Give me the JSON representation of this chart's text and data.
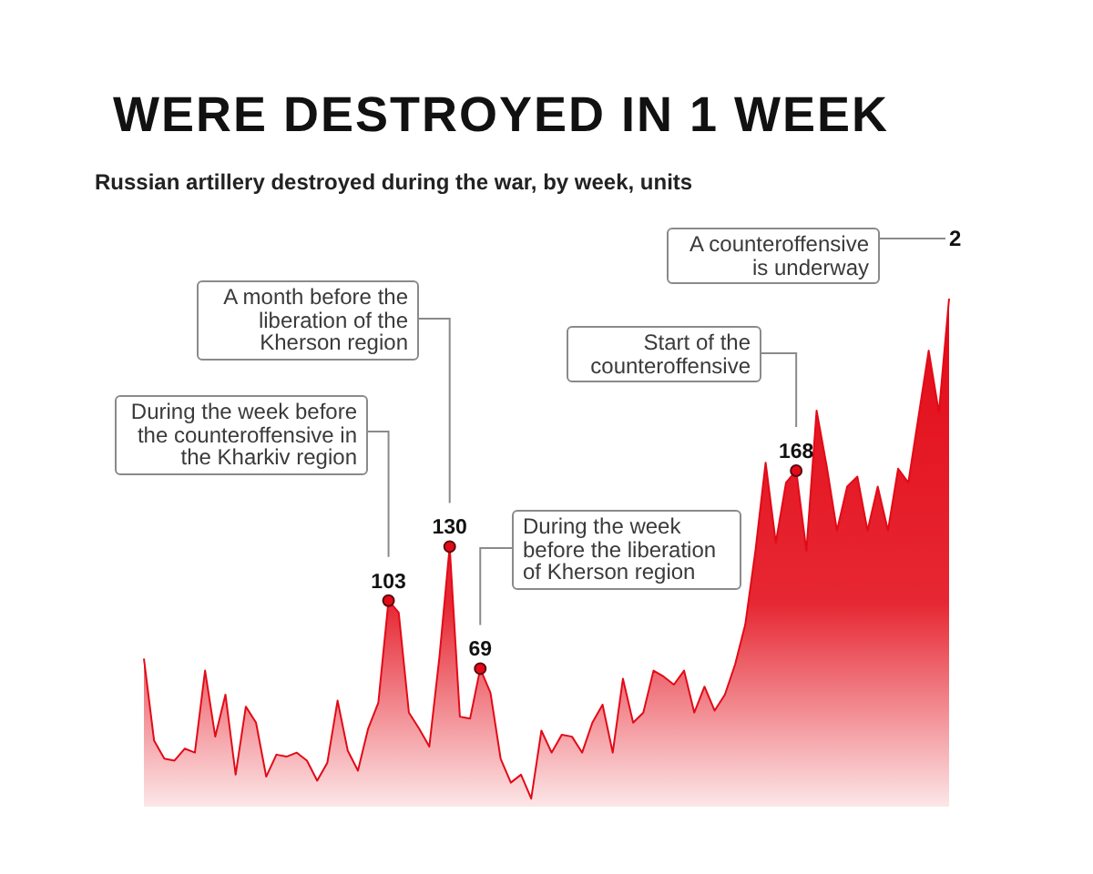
{
  "chart_data": {
    "type": "area",
    "title": "WERE DESTROYED IN 1 WEEK",
    "subtitle": "Russian artillery destroyed during the war, by week, units",
    "categories": [
      null,
      null,
      null,
      null,
      null,
      null,
      null,
      null,
      null,
      null,
      null,
      null,
      null,
      null,
      null,
      null,
      null,
      null,
      null,
      null,
      null,
      null,
      null,
      null,
      null,
      null,
      null,
      null,
      null,
      null,
      null,
      null,
      null,
      null,
      null,
      null,
      null,
      null,
      null,
      null,
      null,
      null,
      null,
      null,
      null,
      null,
      null,
      null,
      null,
      null,
      null,
      null,
      null,
      null,
      null,
      null,
      null,
      null,
      null,
      null,
      null,
      null,
      null,
      null,
      null,
      null,
      null,
      null,
      null,
      null,
      null,
      null,
      null,
      null,
      null,
      null,
      null,
      null,
      null,
      null
    ],
    "series": [
      {
        "color": "#e30a17",
        "values": [
          74,
          33,
          24,
          23,
          29,
          27,
          68,
          35,
          56,
          16,
          50,
          42,
          15,
          26,
          25,
          27,
          23,
          13,
          22,
          53,
          28,
          18,
          39,
          52,
          103,
          97,
          47,
          39,
          30,
          75,
          130,
          45,
          44,
          69,
          57,
          24,
          12,
          16,
          4,
          38,
          27,
          36,
          35,
          27,
          42,
          51,
          27,
          64,
          42,
          47,
          68,
          65,
          61,
          68,
          47,
          60,
          48,
          56,
          71,
          91,
          128,
          172,
          132,
          162,
          168,
          128,
          198,
          170,
          138,
          160,
          165,
          138,
          160,
          138,
          169,
          162,
          195,
          228,
          197,
          254
        ],
        "value_labels": [
          null,
          null,
          null,
          null,
          null,
          null,
          null,
          null,
          null,
          null,
          null,
          null,
          null,
          null,
          null,
          null,
          null,
          null,
          null,
          null,
          null,
          null,
          null,
          null,
          "103",
          null,
          null,
          null,
          null,
          null,
          "130",
          null,
          null,
          "69",
          null,
          null,
          null,
          null,
          null,
          null,
          null,
          null,
          null,
          null,
          null,
          null,
          null,
          null,
          null,
          null,
          null,
          null,
          null,
          null,
          null,
          null,
          null,
          null,
          null,
          null,
          null,
          null,
          null,
          null,
          "168",
          null,
          null,
          null,
          null,
          null,
          null,
          null,
          null,
          null,
          null,
          null,
          null,
          null,
          null,
          null
        ]
      }
    ],
    "tick_labels": false,
    "annotations": [
      "During the week before the counteroffensive in the Kharkiv region",
      "A month before the liberation of the Kherson region",
      "During the week before the liberation of Kherson region",
      "Start of the counteroffensive",
      "A counteroffensive is underway",
      "2"
    ]
  }
}
